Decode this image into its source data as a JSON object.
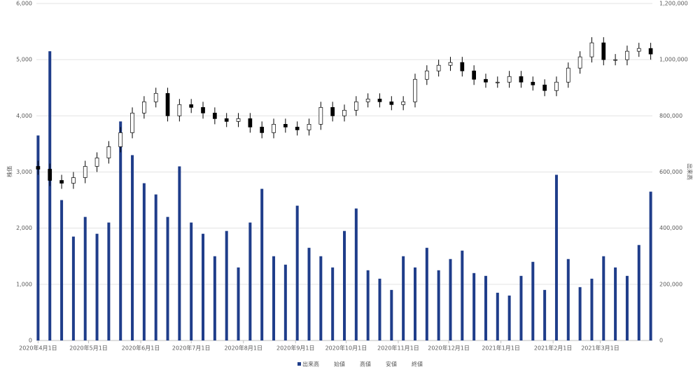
{
  "chart_data": {
    "type": "stock",
    "y_label": "株価",
    "y2_label": "出来高",
    "x": [
      "2020-04-01",
      "2020-04-08",
      "2020-04-15",
      "2020-04-22",
      "2020-04-29",
      "2020-05-06",
      "2020-05-13",
      "2020-05-20",
      "2020-05-27",
      "2020-06-03",
      "2020-06-10",
      "2020-06-17",
      "2020-06-24",
      "2020-07-01",
      "2020-07-08",
      "2020-07-15",
      "2020-07-22",
      "2020-07-29",
      "2020-08-05",
      "2020-08-12",
      "2020-08-19",
      "2020-08-26",
      "2020-09-02",
      "2020-09-09",
      "2020-09-16",
      "2020-09-23",
      "2020-09-30",
      "2020-10-07",
      "2020-10-14",
      "2020-10-21",
      "2020-10-28",
      "2020-11-04",
      "2020-11-11",
      "2020-11-18",
      "2020-11-25",
      "2020-12-02",
      "2020-12-09",
      "2020-12-16",
      "2020-12-23",
      "2020-12-30",
      "2021-01-06",
      "2021-01-13",
      "2021-01-20",
      "2021-01-27",
      "2021-02-03",
      "2021-02-10",
      "2021-02-17",
      "2021-02-24",
      "2021-03-03",
      "2021-03-10",
      "2021-03-17",
      "2021-03-24",
      "2021-03-31"
    ],
    "series": [
      {
        "name": "出来高",
        "color": "#1f3d8a",
        "axis": "y2",
        "values": [
          730000,
          1030000,
          500000,
          370000,
          440000,
          380000,
          420000,
          780000,
          660000,
          560000,
          520000,
          440000,
          620000,
          420000,
          380000,
          300000,
          390000,
          260000,
          420000,
          540000,
          300000,
          270000,
          480000,
          330000,
          300000,
          260000,
          390000,
          470000,
          250000,
          220000,
          180000,
          300000,
          260000,
          330000,
          250000,
          290000,
          320000,
          240000,
          230000,
          170000,
          160000,
          230000,
          280000,
          180000,
          590000,
          290000,
          190000,
          220000,
          300000,
          260000,
          230000,
          340000,
          530000
        ]
      },
      {
        "name": "始値",
        "values": [
          3100,
          3050,
          2850,
          2800,
          2900,
          3100,
          3250,
          3450,
          3700,
          4050,
          4250,
          4400,
          4000,
          4200,
          4150,
          4050,
          3950,
          3900,
          3950,
          3800,
          3700,
          3850,
          3800,
          3750,
          3850,
          4150,
          4000,
          4100,
          4250,
          4300,
          4250,
          4200,
          4250,
          4650,
          4800,
          4900,
          4950,
          4800,
          4650,
          4600,
          4600,
          4700,
          4600,
          4550,
          4450,
          4600,
          4850,
          5050,
          5300,
          5000,
          5000,
          5150,
          5200
        ]
      },
      {
        "name": "高値",
        "values": [
          3200,
          3150,
          2950,
          3000,
          3200,
          3350,
          3550,
          3800,
          4150,
          4350,
          4500,
          4500,
          4300,
          4300,
          4250,
          4150,
          4050,
          4050,
          4050,
          3900,
          3950,
          3950,
          3900,
          3950,
          4250,
          4250,
          4200,
          4350,
          4400,
          4400,
          4350,
          4350,
          4750,
          4900,
          5000,
          5050,
          5050,
          4900,
          4750,
          4700,
          4800,
          4800,
          4700,
          4650,
          4700,
          4950,
          5150,
          5400,
          5400,
          5100,
          5250,
          5300,
          5300
        ]
      },
      {
        "name": "安値",
        "values": [
          2950,
          2750,
          2700,
          2700,
          2800,
          3000,
          3150,
          3350,
          3600,
          3950,
          4150,
          3900,
          3900,
          4050,
          3950,
          3850,
          3800,
          3800,
          3700,
          3600,
          3600,
          3700,
          3650,
          3650,
          3750,
          3900,
          3900,
          4000,
          4150,
          4150,
          4100,
          4100,
          4150,
          4550,
          4700,
          4800,
          4700,
          4550,
          4500,
          4500,
          4500,
          4500,
          4450,
          4350,
          4350,
          4500,
          4750,
          4950,
          4900,
          4900,
          4900,
          5050,
          5000
        ]
      },
      {
        "name": "終値",
        "values": [
          3050,
          2850,
          2800,
          2900,
          3100,
          3250,
          3450,
          3700,
          4050,
          4250,
          4400,
          4000,
          4200,
          4150,
          4050,
          3950,
          3900,
          3950,
          3800,
          3700,
          3850,
          3800,
          3750,
          3850,
          4150,
          4000,
          4100,
          4250,
          4300,
          4250,
          4200,
          4250,
          4650,
          4800,
          4900,
          4950,
          4800,
          4650,
          4600,
          4600,
          4700,
          4600,
          4550,
          4450,
          4600,
          4850,
          5050,
          5300,
          5000,
          5000,
          5150,
          5200,
          5100
        ]
      }
    ],
    "xlim": [
      "2020-03-31",
      "2021-04-01"
    ],
    "xticks": [
      {
        "value": "2020-04-01",
        "label": "2020年4月1日"
      },
      {
        "value": "2020-05-01",
        "label": "2020年5月1日"
      },
      {
        "value": "2020-06-01",
        "label": "2020年6月1日"
      },
      {
        "value": "2020-07-01",
        "label": "2020年7月1日"
      },
      {
        "value": "2020-08-01",
        "label": "2020年8月1日"
      },
      {
        "value": "2020-09-01",
        "label": "2020年9月1日"
      },
      {
        "value": "2020-10-01",
        "label": "2020年10月1日"
      },
      {
        "value": "2020-11-01",
        "label": "2020年11月1日"
      },
      {
        "value": "2020-12-01",
        "label": "2020年12月1日"
      },
      {
        "value": "2021-01-01",
        "label": "2021年1月1日"
      },
      {
        "value": "2021-02-01",
        "label": "2021年2月1日"
      },
      {
        "value": "2021-03-01",
        "label": "2021年3月1日"
      }
    ],
    "ylim": [
      0,
      6000
    ],
    "yticks": [
      0,
      {
        "value": 1000,
        "label": "1,000"
      },
      {
        "value": 2000,
        "label": "2,000"
      },
      {
        "value": 3000,
        "label": "3,000"
      },
      {
        "value": 4000,
        "label": "4,000"
      },
      {
        "value": 5000,
        "label": "5,000"
      },
      {
        "value": 6000,
        "label": "6,000"
      }
    ],
    "y2lim": [
      0,
      1200000
    ],
    "y2ticks": [
      0,
      {
        "value": 200000,
        "label": "200,000"
      },
      {
        "value": 400000,
        "label": "400,000"
      },
      {
        "value": 600000,
        "label": "600,000"
      },
      {
        "value": 800000,
        "label": "800,000"
      },
      {
        "value": 1000000,
        "label": "1,000,000"
      },
      {
        "value": 1200000,
        "label": "1,200,000"
      }
    ],
    "grid": true,
    "legend": "bottom"
  }
}
